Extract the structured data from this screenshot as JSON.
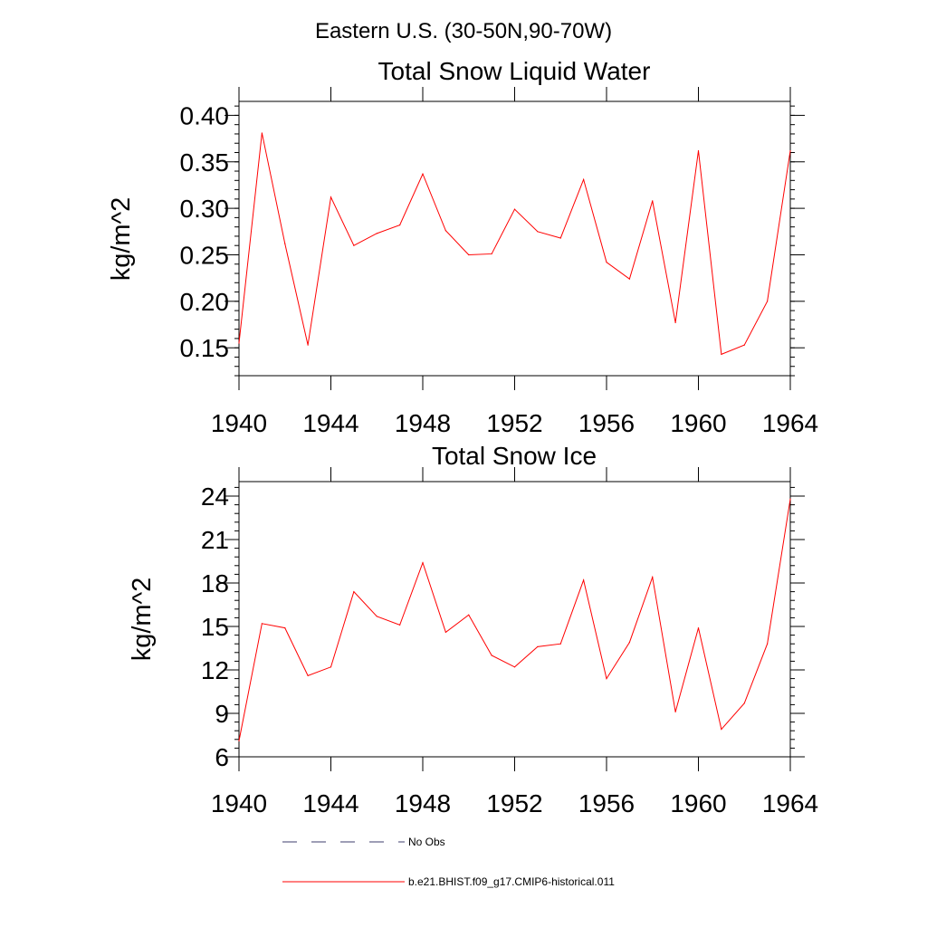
{
  "figure": {
    "title": "Eastern U.S. (30-50N,90-70W)"
  },
  "chart_data": [
    {
      "type": "line",
      "title": "Total Snow Liquid Water",
      "xlabel": "",
      "ylabel": "kg/m^2",
      "xlim": [
        1940,
        1964
      ],
      "ylim": [
        0.12,
        0.415
      ],
      "xticks": [
        1940,
        1944,
        1948,
        1952,
        1956,
        1960,
        1964
      ],
      "yticks": [
        0.15,
        0.2,
        0.25,
        0.3,
        0.35,
        0.4
      ],
      "ytick_labels": [
        "0.15",
        "0.20",
        "0.25",
        "0.30",
        "0.35",
        "0.40"
      ],
      "grid": false,
      "series": [
        {
          "name": "b.e21.BHIST.f09_g17.CMIP6-historical.011",
          "color": "#ff0000",
          "x": [
            1940,
            1941,
            1942,
            1943,
            1944,
            1945,
            1946,
            1947,
            1948,
            1949,
            1950,
            1951,
            1952,
            1953,
            1954,
            1955,
            1956,
            1957,
            1958,
            1959,
            1960,
            1961,
            1962,
            1963,
            1964
          ],
          "values": [
            0.155,
            0.381,
            0.262,
            0.153,
            0.312,
            0.26,
            0.273,
            0.282,
            0.337,
            0.276,
            0.25,
            0.251,
            0.299,
            0.275,
            0.268,
            0.331,
            0.242,
            0.224,
            0.308,
            0.177,
            0.362,
            0.143,
            0.153,
            0.2,
            0.362
          ]
        }
      ]
    },
    {
      "type": "line",
      "title": "Total Snow Ice",
      "xlabel": "",
      "ylabel": "kg/m^2",
      "xlim": [
        1940,
        1964
      ],
      "ylim": [
        6,
        25
      ],
      "xticks": [
        1940,
        1944,
        1948,
        1952,
        1956,
        1960,
        1964
      ],
      "yticks": [
        6,
        9,
        12,
        15,
        18,
        21,
        24
      ],
      "ytick_labels": [
        "6",
        "9",
        "12",
        "15",
        "18",
        "21",
        "24"
      ],
      "grid": false,
      "series": [
        {
          "name": "b.e21.BHIST.f09_g17.CMIP6-historical.011",
          "color": "#ff0000",
          "x": [
            1940,
            1941,
            1942,
            1943,
            1944,
            1945,
            1946,
            1947,
            1948,
            1949,
            1950,
            1951,
            1952,
            1953,
            1954,
            1955,
            1956,
            1957,
            1958,
            1959,
            1960,
            1961,
            1962,
            1963,
            1964
          ],
          "values": [
            7.1,
            15.2,
            14.9,
            11.6,
            12.2,
            17.4,
            15.7,
            15.1,
            19.4,
            14.6,
            15.8,
            13.0,
            12.2,
            13.6,
            13.8,
            18.2,
            11.4,
            13.9,
            18.4,
            9.1,
            14.9,
            7.9,
            9.7,
            13.8,
            23.8
          ]
        }
      ]
    }
  ],
  "legend": {
    "placement": "bottom",
    "entries": [
      {
        "label": "No Obs",
        "color": "#3c3c6e",
        "style": "dashed"
      },
      {
        "label": "b.e21.BHIST.f09_g17.CMIP6-historical.011",
        "color": "#ff0000",
        "style": "solid"
      }
    ]
  }
}
